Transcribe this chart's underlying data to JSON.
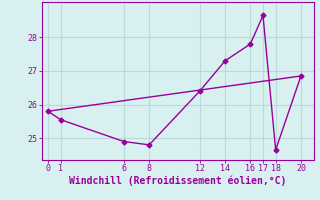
{
  "xlabel": "Windchill (Refroidissement éolien,°C)",
  "background_color": "#d8f0f0",
  "grid_color": "#b8dada",
  "line_color": "#990099",
  "line1_x": [
    0,
    1,
    6,
    8,
    12,
    14,
    16,
    17,
    18,
    20
  ],
  "line1_y": [
    25.8,
    25.55,
    24.9,
    24.8,
    26.4,
    27.3,
    27.8,
    28.65,
    24.65,
    26.85
  ],
  "line2_x": [
    0,
    20
  ],
  "line2_y": [
    25.8,
    26.85
  ],
  "xticks": [
    0,
    1,
    6,
    8,
    12,
    14,
    16,
    17,
    18,
    20
  ],
  "yticks": [
    25,
    26,
    27,
    28
  ],
  "xlim": [
    -0.5,
    21.0
  ],
  "ylim": [
    24.35,
    29.05
  ],
  "marker": "D",
  "markersize": 2.5,
  "linewidth": 1.0,
  "tick_fontsize": 6,
  "xlabel_fontsize": 7
}
